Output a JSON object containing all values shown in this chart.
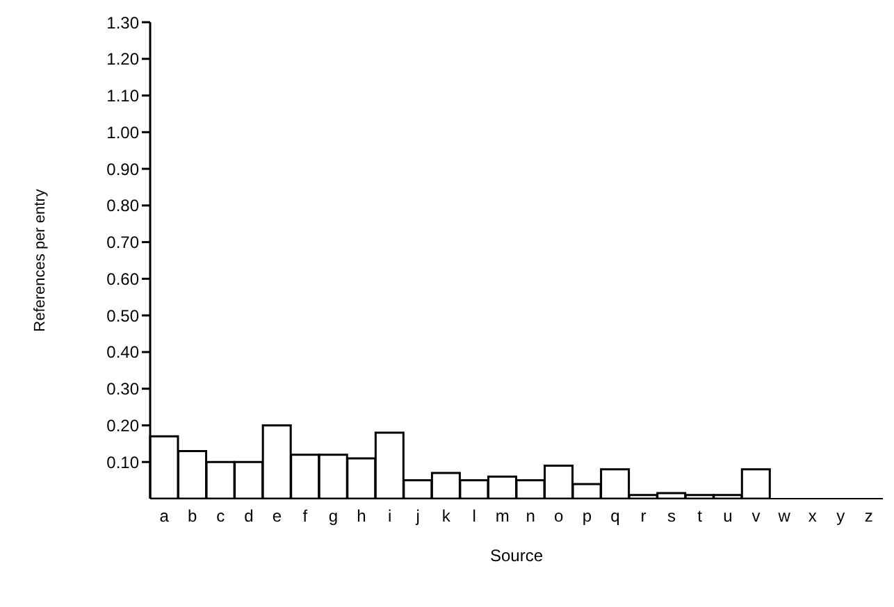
{
  "chart_data": {
    "type": "bar",
    "xlabel": "Source",
    "ylabel": "References per entry",
    "categories": [
      "a",
      "b",
      "c",
      "d",
      "e",
      "f",
      "g",
      "h",
      "i",
      "j",
      "k",
      "l",
      "m",
      "n",
      "o",
      "p",
      "q",
      "r",
      "s",
      "t",
      "u",
      "v",
      "w",
      "x",
      "y",
      "z"
    ],
    "values": [
      0.17,
      0.13,
      0.1,
      0.1,
      0.2,
      0.12,
      0.12,
      0.11,
      0.18,
      0.05,
      0.07,
      0.05,
      0.06,
      0.05,
      0.09,
      0.04,
      0.08,
      0.01,
      0.015,
      0.01,
      0.01,
      0.08,
      0,
      0,
      0,
      0
    ],
    "color": "#ffffff",
    "ylim": [
      0,
      1.3
    ],
    "yticks": [
      {
        "value": 0.1,
        "label": "0.10"
      },
      {
        "value": 0.2,
        "label": "0.20"
      },
      {
        "value": 0.3,
        "label": "0.30"
      },
      {
        "value": 0.4,
        "label": "0.40"
      },
      {
        "value": 0.5,
        "label": "0.50"
      },
      {
        "value": 0.6,
        "label": "0.60"
      },
      {
        "value": 0.7,
        "label": "0.70"
      },
      {
        "value": 0.8,
        "label": "0.80"
      },
      {
        "value": 0.9,
        "label": "0.90"
      },
      {
        "value": 1.0,
        "label": "1.00"
      },
      {
        "value": 1.1,
        "label": "1.10"
      },
      {
        "value": 1.2,
        "label": "1.20"
      },
      {
        "value": 1.3,
        "label": "1.30"
      }
    ],
    "grid": false
  }
}
